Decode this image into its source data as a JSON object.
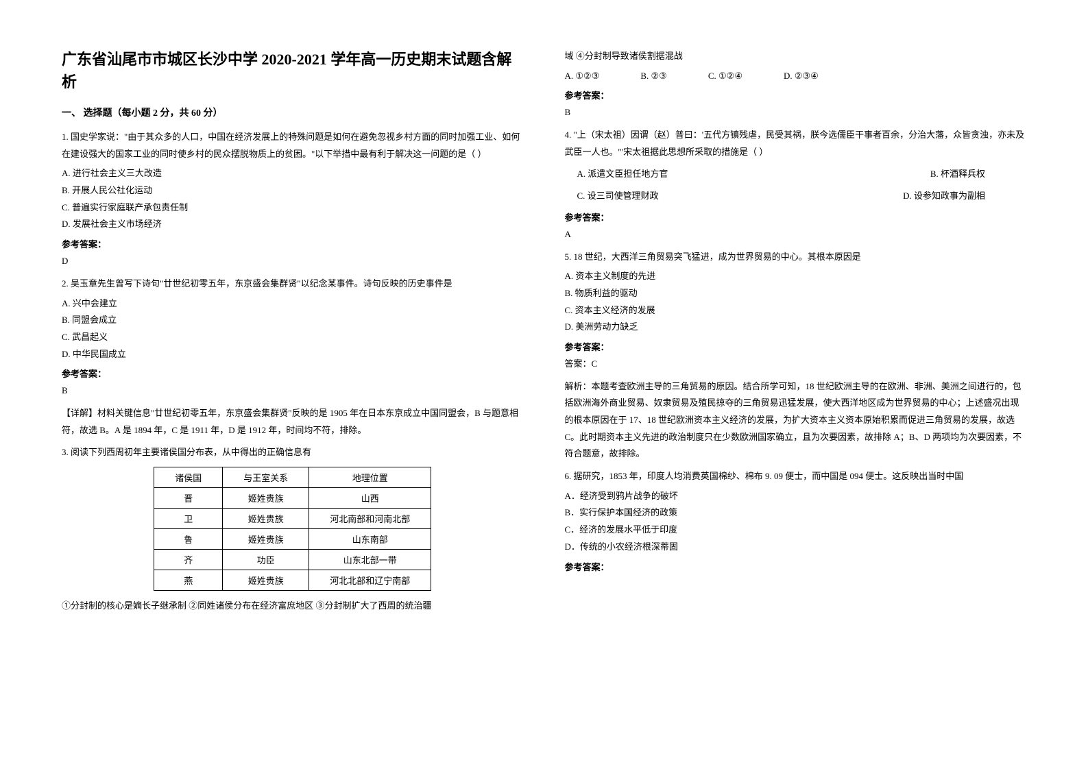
{
  "title": "广东省汕尾市市城区长沙中学 2020-2021 学年高一历史期末试题含解析",
  "section_header": "一、 选择题（每小题 2 分，共 60 分）",
  "q1": {
    "stem": "1. 国史学家说：\"由于其众多的人口，中国在经济发展上的特殊问题是如何在避免忽视乡村方面的同时加强工业、如何在建设强大的国家工业的同时使乡村的民众摆脱物质上的贫困。\"以下举措中最有利于解决这一问题的是（   ）",
    "a": "A. 进行社会主义三大改造",
    "b": "B. 开展人民公社化运动",
    "c": "C. 普遍实行家庭联产承包责任制",
    "d": "D. 发展社会主义市场经济",
    "answer_label": "参考答案：",
    "answer": "D"
  },
  "q2": {
    "stem": "2. 吴玉章先生曾写下诗句\"廿世纪初零五年，东京盛会集群贤\"以纪念某事件。诗句反映的历史事件是",
    "a": "A. 兴中会建立",
    "b": "B. 同盟会成立",
    "c": "C. 武昌起义",
    "d": "D. 中华民国成立",
    "answer_label": "参考答案：",
    "answer": "B",
    "explanation": "【详解】材料关键信息\"廿世纪初零五年，东京盛会集群贤\"反映的是 1905 年在日本东京成立中国同盟会，B 与题意相符，故选 B。A 是 1894 年，C 是 1911 年，D 是 1912 年，时间均不符，排除。"
  },
  "q3": {
    "stem": "3. 阅读下列西周初年主要诸侯国分布表，从中得出的正确信息有",
    "table": {
      "headers": [
        "诸侯国",
        "与王室关系",
        "地理位置"
      ],
      "rows": [
        [
          "晋",
          "姬姓贵族",
          "山西"
        ],
        [
          "卫",
          "姬姓贵族",
          "河北南部和河南北部"
        ],
        [
          "鲁",
          "姬姓贵族",
          "山东南部"
        ],
        [
          "齐",
          "功臣",
          "山东北部一带"
        ],
        [
          "燕",
          "姬姓贵族",
          "河北北部和辽宁南部"
        ]
      ]
    },
    "footer": "①分封制的核心是嫡长子继承制      ②同姓诸侯分布在经济富庶地区  ③分封制扩大了西周的统治疆"
  },
  "q3_right": {
    "continue": "域 ④分封制导致诸侯割据混战",
    "options": {
      "a": "A. ①②③",
      "b": "B. ②③",
      "c": "C. ①②④",
      "d": "D. ②③④"
    },
    "answer_label": "参考答案：",
    "answer": "B"
  },
  "q4": {
    "stem": "4. \"上（宋太祖）因谓（赵）普曰：'五代方镇残虐，民受其祸，朕今选儒臣干事者百余，分治大藩，众皆贪浊，亦未及武臣一人也。'\"宋太祖据此思想所采取的措施是（   ）",
    "a": "A. 派遣文臣担任地方官",
    "b": "B. 杯酒释兵权",
    "c": "C. 设三司使管理财政",
    "d": "D. 设参知政事为副相",
    "answer_label": "参考答案：",
    "answer": "A"
  },
  "q5": {
    "stem": "5. 18 世纪，大西洋三角贸易突飞猛进，成为世界贸易的中心。其根本原因是",
    "a": "A. 资本主义制度的先进",
    "b": "B. 物质利益的驱动",
    "c": "C. 资本主义经济的发展",
    "d": "D. 美洲劳动力缺乏",
    "answer_label": "参考答案：",
    "answer": "答案：C",
    "explanation": "解析：本题考查欧洲主导的三角贸易的原因。结合所学可知，18 世纪欧洲主导的在欧洲、非洲、美洲之间进行的，包括欧洲海外商业贸易、奴隶贸易及殖民掠夺的三角贸易迅猛发展，使大西洋地区成为世界贸易的中心；上述盛况出现的根本原因在于 17、18 世纪欧洲资本主义经济的发展，为扩大资本主义资本原始积累而促进三角贸易的发展，故选 C。此时期资本主义先进的政治制度只在少数欧洲国家确立，且为次要因素，故排除 A；B、D 两项均为次要因素，不符合题意，故排除。"
  },
  "q6": {
    "stem": "6. 据研究，1853 年，印度人均消费英国棉纱、棉布 9. 09 便士，而中国是 094 便士。这反映出当时中国",
    "a": "A．经济受到鸦片战争的破坏",
    "b": "B．实行保护本国经济的政策",
    "c": "C．经济的发展水平低于印度",
    "d": "D．传统的小农经济根深蒂固",
    "answer_label": "参考答案："
  }
}
